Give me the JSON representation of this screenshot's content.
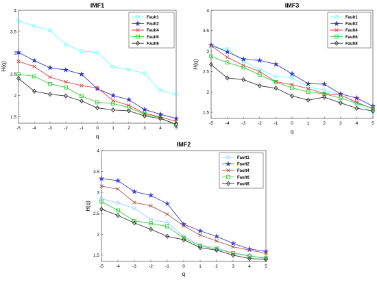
{
  "chart_data": [
    {
      "type": "line",
      "title": "IMF1",
      "xlabel": "q",
      "ylabel": "H(q)",
      "xlim": [
        -5,
        5
      ],
      "ylim": [
        1.35,
        4
      ],
      "x": [
        -5,
        -4,
        -3,
        -2,
        -1,
        0,
        1,
        2,
        3,
        4,
        5
      ],
      "xticks": [
        "-5",
        "-4",
        "-3",
        "-2",
        "-1",
        "0",
        "1",
        "2",
        "3",
        "4",
        "5"
      ],
      "yticks": [
        1.5,
        2,
        2.5,
        3,
        3.5,
        4
      ],
      "yticklabels": [
        "1.5",
        "2",
        "2.5",
        "3",
        "3.5",
        "4"
      ],
      "legend_position": "top-right",
      "series": [
        {
          "name": "Fault1",
          "color": "#66ffff",
          "marker": "circle",
          "values": [
            3.75,
            3.63,
            3.53,
            3.2,
            3.04,
            3.01,
            2.67,
            2.61,
            2.52,
            2.12,
            2.03
          ]
        },
        {
          "name": "Fault2",
          "color": "#3333cc",
          "marker": "star",
          "values": [
            3.01,
            2.82,
            2.65,
            2.6,
            2.5,
            2.16,
            2.0,
            1.9,
            1.67,
            1.56,
            1.46
          ]
        },
        {
          "name": "Fault4",
          "color": "#e04040",
          "marker": "x",
          "values": [
            2.8,
            2.68,
            2.43,
            2.32,
            2.23,
            2.18,
            1.88,
            1.77,
            1.58,
            1.5,
            1.39
          ]
        },
        {
          "name": "Fault6",
          "color": "#33cc33",
          "marker": "square",
          "values": [
            2.5,
            2.45,
            2.27,
            2.19,
            1.99,
            1.84,
            1.81,
            1.72,
            1.56,
            1.48,
            1.3
          ]
        },
        {
          "name": "Fault8",
          "color": "#333333",
          "marker": "diamond",
          "values": [
            2.4,
            2.1,
            2.03,
            1.99,
            1.87,
            1.71,
            1.66,
            1.64,
            1.52,
            1.46,
            1.33
          ]
        }
      ]
    },
    {
      "type": "line",
      "title": "IMF3",
      "xlabel": "q",
      "ylabel": "H(q)",
      "xlim": [
        -5,
        5
      ],
      "ylim": [
        1.35,
        4
      ],
      "x": [
        -5,
        -4,
        -3,
        -2,
        -1,
        0,
        1,
        2,
        3,
        4,
        5
      ],
      "xticks": [
        "-5",
        "-4",
        "-3",
        "-2",
        "-1",
        "0",
        "1",
        "2",
        "3",
        "4",
        "5"
      ],
      "yticks": [
        1.5,
        2,
        2.5,
        3,
        3.5,
        4
      ],
      "yticklabels": [
        "1.5",
        "2",
        "2.5",
        "3",
        "3.5",
        "4"
      ],
      "legend_position": "top-right",
      "series": [
        {
          "name": "Fault1",
          "color": "#66ffff",
          "marker": "circle",
          "values": [
            3.1,
            3.05,
            2.75,
            2.55,
            2.38,
            2.35,
            2.12,
            2.05,
            1.93,
            1.73,
            1.5
          ]
        },
        {
          "name": "Fault2",
          "color": "#3333cc",
          "marker": "star",
          "values": [
            3.15,
            2.98,
            2.8,
            2.77,
            2.68,
            2.44,
            2.2,
            2.19,
            1.95,
            1.85,
            1.65
          ]
        },
        {
          "name": "Fault4",
          "color": "#e04040",
          "marker": "x",
          "values": [
            3.13,
            2.85,
            2.65,
            2.5,
            2.25,
            2.18,
            2.08,
            1.96,
            1.92,
            1.75,
            1.58
          ]
        },
        {
          "name": "Fault6",
          "color": "#33cc33",
          "marker": "square",
          "values": [
            2.87,
            2.72,
            2.6,
            2.42,
            2.24,
            2.1,
            2.0,
            1.95,
            1.85,
            1.72,
            1.6
          ]
        },
        {
          "name": "Fault8",
          "color": "#333333",
          "marker": "diamond",
          "values": [
            2.67,
            2.34,
            2.3,
            2.15,
            2.09,
            1.9,
            1.8,
            1.87,
            1.73,
            1.6,
            1.53
          ]
        }
      ]
    },
    {
      "type": "line",
      "title": "IMF2",
      "xlabel": "q",
      "ylabel": "H(q)",
      "xlim": [
        -5,
        5
      ],
      "ylim": [
        1.35,
        4
      ],
      "x": [
        -5,
        -4,
        -3,
        -2,
        -1,
        0,
        1,
        2,
        3,
        4,
        5
      ],
      "xticks": [
        "-5",
        "-4",
        "-3",
        "-2",
        "-1",
        "0",
        "1",
        "2",
        "3",
        "4",
        "5"
      ],
      "yticks": [
        1.5,
        2,
        2.5,
        3,
        3.5,
        4
      ],
      "yticklabels": [
        "1.5",
        "2",
        "2.5",
        "3",
        "3.5",
        "4"
      ],
      "legend_position": "top-right",
      "series": [
        {
          "name": "Fault1",
          "color": "#99ccff",
          "marker": "circle",
          "values": [
            2.85,
            2.75,
            2.62,
            2.35,
            2.28,
            1.95,
            1.75,
            1.68,
            1.55,
            1.5,
            1.4
          ]
        },
        {
          "name": "Fault2",
          "color": "#4040dd",
          "marker": "star",
          "values": [
            3.33,
            3.28,
            3.02,
            2.93,
            2.73,
            2.24,
            2.08,
            1.95,
            1.78,
            1.65,
            1.59
          ]
        },
        {
          "name": "Fault4",
          "color": "#aa5544",
          "marker": "x",
          "values": [
            3.15,
            3.08,
            2.76,
            2.68,
            2.48,
            2.2,
            1.98,
            1.84,
            1.7,
            1.62,
            1.55
          ]
        },
        {
          "name": "Fault6",
          "color": "#33cc33",
          "marker": "square",
          "values": [
            2.78,
            2.57,
            2.32,
            2.26,
            2.19,
            1.91,
            1.72,
            1.65,
            1.55,
            1.48,
            1.43
          ]
        },
        {
          "name": "Fault8",
          "color": "#333333",
          "marker": "diamond",
          "values": [
            2.6,
            2.45,
            2.27,
            2.12,
            1.95,
            1.87,
            1.68,
            1.62,
            1.5,
            1.42,
            1.4
          ]
        }
      ]
    }
  ]
}
